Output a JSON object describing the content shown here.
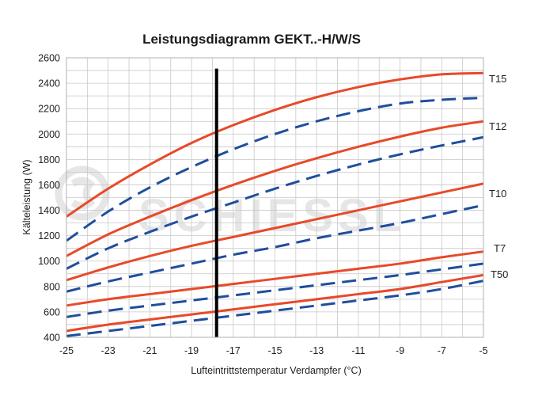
{
  "chart_data": {
    "type": "line",
    "title": "Leistungsdiagramm GEKT..-H/W/S",
    "xlabel": "Lufteintrittstemperatur Verdampfer (°C)",
    "ylabel": "Kälteleistung (W)",
    "xlim": [
      -25,
      -5
    ],
    "ylim": [
      400,
      2600
    ],
    "xticks": [
      -25,
      -23,
      -21,
      -19,
      -17,
      -15,
      -13,
      -11,
      -9,
      -7,
      -5
    ],
    "yticks": [
      400,
      600,
      800,
      1000,
      1200,
      1400,
      1600,
      1800,
      2000,
      2200,
      2400,
      2600
    ],
    "grid": true,
    "marker_line_x": -17.8,
    "watermark": "SCHIESSL",
    "colors": {
      "solid": "#e8492a",
      "dashed": "#1f4e9c",
      "marker": "#000000",
      "grid": "#c8c8c8"
    },
    "series_labels": [
      "T15",
      "T12",
      "T10",
      "T7",
      "T50"
    ],
    "x": [
      -25,
      -23,
      -21,
      -19,
      -17,
      -15,
      -13,
      -11,
      -9,
      -7,
      -5
    ],
    "series": [
      {
        "name": "T15 solid",
        "style": "solid",
        "values": [
          1350,
          1570,
          1760,
          1930,
          2070,
          2190,
          2290,
          2370,
          2430,
          2470,
          2480
        ]
      },
      {
        "name": "T15 dashed",
        "style": "dashed",
        "values": [
          1160,
          1390,
          1580,
          1740,
          1880,
          2000,
          2100,
          2180,
          2240,
          2270,
          2285
        ]
      },
      {
        "name": "T12 solid",
        "style": "solid",
        "values": [
          1040,
          1210,
          1350,
          1480,
          1600,
          1710,
          1810,
          1900,
          1980,
          2050,
          2100
        ]
      },
      {
        "name": "T12 dashed",
        "style": "dashed",
        "values": [
          940,
          1100,
          1230,
          1350,
          1460,
          1570,
          1670,
          1760,
          1840,
          1910,
          1975
        ]
      },
      {
        "name": "T10 solid",
        "style": "solid",
        "values": [
          850,
          950,
          1040,
          1120,
          1190,
          1260,
          1330,
          1400,
          1470,
          1540,
          1610
        ]
      },
      {
        "name": "T10 dashed",
        "style": "dashed",
        "values": [
          760,
          840,
          910,
          980,
          1050,
          1110,
          1180,
          1240,
          1300,
          1370,
          1440
        ]
      },
      {
        "name": "T7 solid",
        "style": "solid",
        "values": [
          650,
          700,
          740,
          780,
          820,
          860,
          900,
          940,
          980,
          1030,
          1075
        ]
      },
      {
        "name": "T7 dashed",
        "style": "dashed",
        "values": [
          560,
          610,
          650,
          690,
          730,
          770,
          810,
          850,
          890,
          935,
          980
        ]
      },
      {
        "name": "T50 solid",
        "style": "solid",
        "values": [
          450,
          500,
          540,
          580,
          620,
          660,
          700,
          740,
          780,
          835,
          890
        ]
      },
      {
        "name": "T50 dashed",
        "style": "dashed",
        "values": [
          410,
          450,
          490,
          530,
          570,
          610,
          650,
          690,
          730,
          780,
          845
        ]
      }
    ]
  }
}
